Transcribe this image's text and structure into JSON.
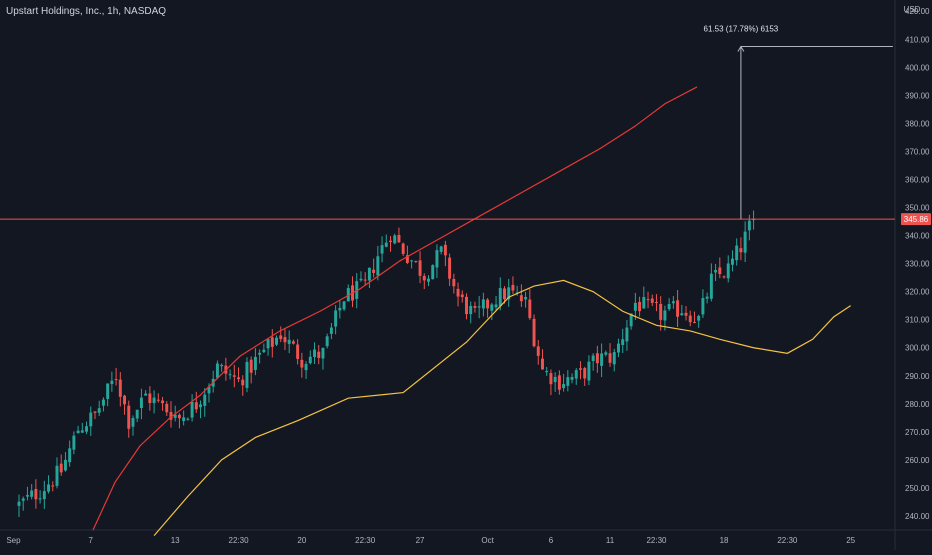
{
  "header": {
    "symbol_title": "Upstart Holdings, Inc., 1h, NASDAQ"
  },
  "colors": {
    "background": "#131722",
    "up": "#26a69a",
    "down": "#ef5350",
    "ma_fast": "#f5c242",
    "ma_slow": "#e53935",
    "resistance": "#ef5350",
    "measure": "#b2b5be",
    "axis_text": "#b2b5be"
  },
  "chart_data": {
    "type": "candlestick",
    "currency_label": "USD",
    "ylim": [
      235,
      424
    ],
    "y_ticks": [
      240,
      250,
      260,
      270,
      280,
      290,
      300,
      310,
      320,
      330,
      340,
      350,
      360,
      370,
      380,
      390,
      400,
      410,
      420
    ],
    "y_tick_labels": [
      "240.00",
      "250.00",
      "260.00",
      "270.00",
      "280.00",
      "290.00",
      "300.00",
      "310.00",
      "320.00",
      "330.00",
      "340.00",
      "350.00",
      "360.00",
      "370.00",
      "380.00",
      "390.00",
      "400.00",
      "410.00",
      "420.00"
    ],
    "x_labels": [
      "Sep",
      "7",
      "13",
      "22:30",
      "20",
      "22:30",
      "27",
      "Oct",
      "6",
      "11",
      "22:30",
      "18",
      "22:30",
      "25"
    ],
    "x_label_bars": [
      1,
      21,
      41,
      56,
      71,
      86,
      99,
      115,
      130,
      144,
      155,
      171,
      186,
      201
    ],
    "total_bars": 212,
    "current_price": {
      "value": 345.86,
      "label": "345.86"
    },
    "resistance_level": 345.86,
    "measure_annotation": {
      "label": "61.53 (17.78%) 6153",
      "from_price": 345.86,
      "to_price": 407.4,
      "bar": 175,
      "x_from_bar": 175,
      "x_to_bar": 211
    },
    "candles_from_bar": 4,
    "close_anchors": [
      [
        0,
        244
      ],
      [
        5,
        249
      ],
      [
        10,
        256
      ],
      [
        14,
        271
      ],
      [
        18,
        276
      ],
      [
        23,
        290
      ],
      [
        26,
        274
      ],
      [
        30,
        283
      ],
      [
        35,
        278
      ],
      [
        38,
        275
      ],
      [
        42,
        280
      ],
      [
        47,
        293
      ],
      [
        52,
        288
      ],
      [
        57,
        297
      ],
      [
        62,
        305
      ],
      [
        67,
        296
      ],
      [
        72,
        298
      ],
      [
        77,
        318
      ],
      [
        82,
        322
      ],
      [
        85,
        333
      ],
      [
        88,
        341
      ],
      [
        92,
        333
      ],
      [
        96,
        326
      ],
      [
        100,
        334
      ],
      [
        104,
        318
      ],
      [
        108,
        311
      ],
      [
        112,
        317
      ],
      [
        116,
        320
      ],
      [
        120,
        316
      ],
      [
        124,
        292
      ],
      [
        128,
        288
      ],
      [
        133,
        290
      ],
      [
        137,
        296
      ],
      [
        141,
        297
      ],
      [
        146,
        316
      ],
      [
        152,
        312
      ],
      [
        157,
        314
      ],
      [
        161,
        310
      ],
      [
        164,
        324
      ],
      [
        168,
        328
      ],
      [
        171,
        336
      ],
      [
        174,
        346
      ]
    ],
    "series": [
      {
        "name": "",
        "role": "moving-average-fast",
        "points": [
          [
            36,
            233
          ],
          [
            44,
            247
          ],
          [
            52,
            260
          ],
          [
            60,
            268
          ],
          [
            70,
            274
          ],
          [
            82,
            282
          ],
          [
            95,
            284
          ],
          [
            110,
            302
          ],
          [
            120,
            318
          ],
          [
            126,
            322
          ],
          [
            133,
            324
          ],
          [
            140,
            320
          ],
          [
            147,
            313
          ],
          [
            155,
            308
          ],
          [
            163,
            306
          ],
          [
            170,
            303
          ],
          [
            178,
            300
          ],
          [
            186,
            298
          ],
          [
            192,
            303
          ],
          [
            197,
            311
          ],
          [
            201,
            315
          ]
        ]
      },
      {
        "name": "",
        "role": "moving-average-slow",
        "points": [
          [
            93,
            235
          ],
          [
            115,
            252
          ],
          [
            140,
            265
          ],
          [
            170,
            275
          ],
          [
            200,
            283
          ],
          [
            240,
            297
          ],
          [
            280,
            306
          ],
          [
            320,
            313
          ],
          [
            360,
            321
          ],
          [
            400,
            331
          ],
          [
            440,
            339
          ],
          [
            480,
            347
          ],
          [
            520,
            355
          ],
          [
            560,
            363
          ],
          [
            600,
            371
          ],
          [
            635,
            379
          ],
          [
            665,
            387
          ],
          [
            697,
            393
          ]
        ],
        "pixel_space": true
      }
    ]
  }
}
